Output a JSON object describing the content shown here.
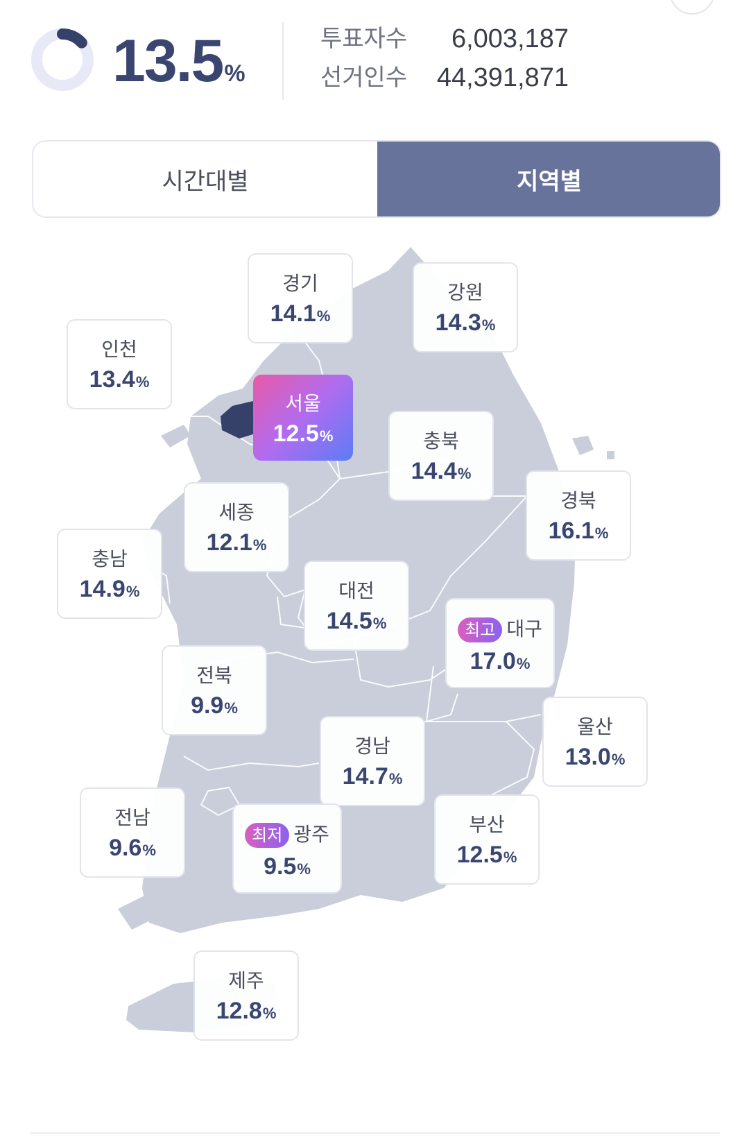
{
  "summary": {
    "turnout_value": "13.5",
    "turnout_unit": "%",
    "turnout_fraction": 0.135,
    "votes_label": "투표자수",
    "votes_value": "6,003,187",
    "electors_label": "선거인수",
    "electors_value": "44,391,871"
  },
  "tabs": [
    {
      "label": "시간대별",
      "selected": false
    },
    {
      "label": "지역별",
      "selected": true
    }
  ],
  "colors": {
    "accent": "#67739b",
    "value_text": "#3b4670",
    "map_fill": "#c9ceda",
    "highlight_gradient": [
      "#e95aa8",
      "#b06cf0",
      "#5b7cf5"
    ],
    "seoul_fill": "#36416a"
  },
  "regions": [
    {
      "name": "경기",
      "value": "14.1",
      "unit": "%"
    },
    {
      "name": "강원",
      "value": "14.3",
      "unit": "%"
    },
    {
      "name": "인천",
      "value": "13.4",
      "unit": "%"
    },
    {
      "name": "서울",
      "value": "12.5",
      "unit": "%",
      "highlighted": true
    },
    {
      "name": "충북",
      "value": "14.4",
      "unit": "%"
    },
    {
      "name": "경북",
      "value": "16.1",
      "unit": "%"
    },
    {
      "name": "세종",
      "value": "12.1",
      "unit": "%"
    },
    {
      "name": "충남",
      "value": "14.9",
      "unit": "%"
    },
    {
      "name": "대전",
      "value": "14.5",
      "unit": "%"
    },
    {
      "name": "대구",
      "value": "17.0",
      "unit": "%",
      "badge": "최고"
    },
    {
      "name": "전북",
      "value": "9.9",
      "unit": "%"
    },
    {
      "name": "울산",
      "value": "13.0",
      "unit": "%"
    },
    {
      "name": "경남",
      "value": "14.7",
      "unit": "%"
    },
    {
      "name": "부산",
      "value": "12.5",
      "unit": "%"
    },
    {
      "name": "전남",
      "value": "9.6",
      "unit": "%"
    },
    {
      "name": "광주",
      "value": "9.5",
      "unit": "%",
      "badge": "최저"
    },
    {
      "name": "제주",
      "value": "12.8",
      "unit": "%"
    }
  ]
}
